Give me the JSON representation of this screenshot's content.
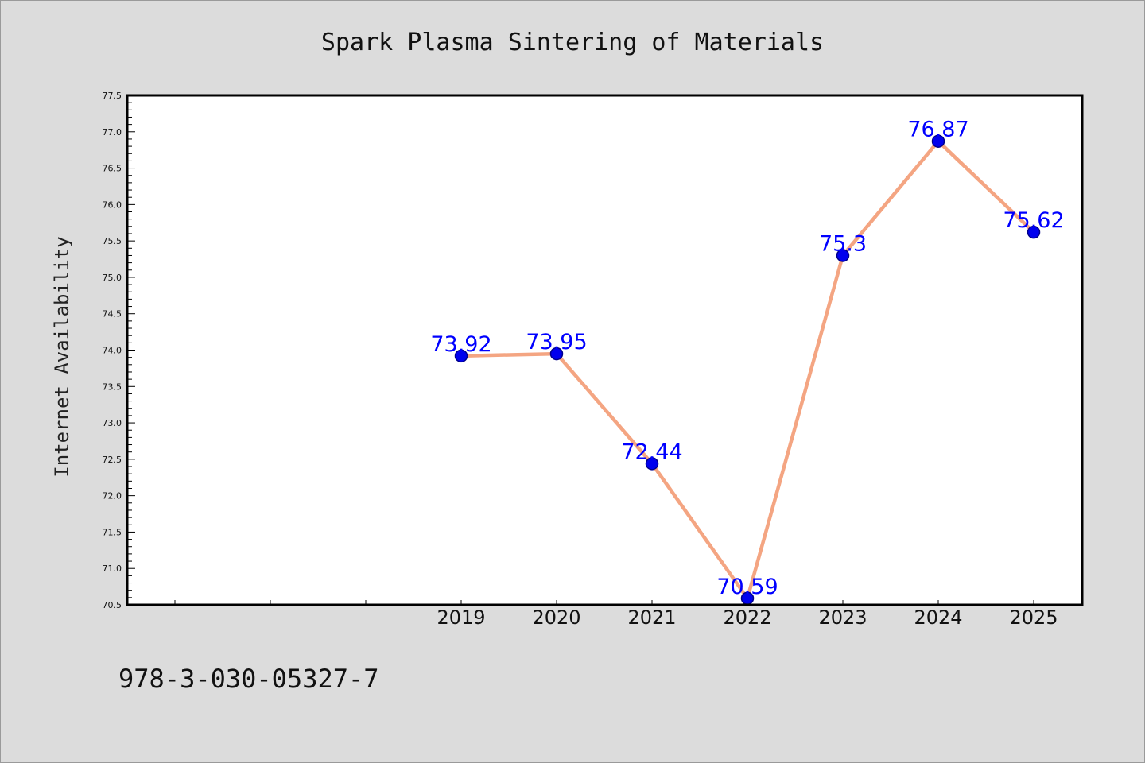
{
  "chart_data": {
    "type": "line",
    "title": "Spark Plasma Sintering of Materials",
    "xlabel": "",
    "ylabel": "Internet Availability",
    "categories": [
      "",
      "",
      "",
      "2019",
      "2020",
      "2021",
      "2022",
      "2023",
      "2024",
      "2025"
    ],
    "x": [
      "2019",
      "2020",
      "2021",
      "2022",
      "2023",
      "2024",
      "2025"
    ],
    "series": [
      {
        "values": [
          73.92,
          73.95,
          72.44,
          70.59,
          75.3,
          76.87,
          75.62
        ],
        "data_labels": [
          "73.92",
          "73.95",
          "72.44",
          "70.59",
          "75.3",
          "76.87",
          "75.62"
        ]
      }
    ],
    "ylim": [
      70.5,
      77.5
    ],
    "yticks": [
      "70.5",
      "71.0",
      "71.5",
      "72.0",
      "72.5",
      "73.0",
      "73.5",
      "74.0",
      "74.5",
      "75.0",
      "75.5",
      "76.0",
      "76.5",
      "77.0",
      "77.5"
    ],
    "grid": false,
    "legend": "none",
    "colors": {
      "background": "#dcdcdc",
      "plot_area": "#ffffff",
      "line": "#f4a582",
      "marker": "#0000ee",
      "marker_edge": "#00008b",
      "data_label": "#0000ff"
    }
  },
  "footer": {
    "isbn": "978-3-030-05327-7"
  }
}
